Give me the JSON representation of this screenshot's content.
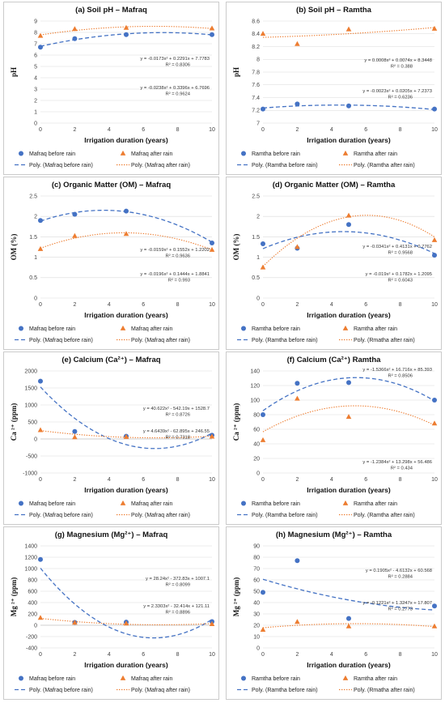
{
  "colors": {
    "before": "#4472C4",
    "after": "#ED7D31",
    "grid": "#d9d9d9",
    "frame": "#bfbfbf"
  },
  "legend_labels": {
    "mafraq_before": "Mafraq before rain",
    "mafraq_after": "Mafraq after rain",
    "mafraq_poly_before": "Poly. (Mafraq before rain)",
    "mafraq_poly_after": "Poly. (Mafraq after rain)",
    "ramtha_before": "Ramtha before rain",
    "ramtha_after": "Ramtha after rain",
    "ramtha_poly_before": "Poly. (Ramtha before rain)",
    "ramtha_poly_after": "Poly. (Rmatha after rain)"
  },
  "chart_data": [
    {
      "id": "a",
      "type": "scatter",
      "title": "(a) Soil pH – Mafraq",
      "xlabel": "Irrigation duration (years)",
      "ylabel": "pH",
      "xlim": [
        0,
        10
      ],
      "xticks": [
        0,
        2,
        4,
        6,
        8,
        10
      ],
      "ylim": [
        0,
        9
      ],
      "yticks": [
        0,
        1,
        2,
        3,
        4,
        5,
        6,
        7,
        8,
        9
      ],
      "grid": true,
      "legend_position": "bottom",
      "series": [
        {
          "name": "Mafraq before rain",
          "marker": "circle",
          "x": [
            0,
            2,
            5,
            10
          ],
          "y": [
            6.7,
            7.45,
            7.8,
            7.8
          ],
          "trend": [
            -0.0238,
            0.3396,
            6.7696
          ],
          "trend_name": "Poly. (Mafraq before rain)",
          "equation": "y = -0.0238x² + 0.3396x + 6.7696",
          "r2": "R² = 0.9624"
        },
        {
          "name": "Mafraq after rain",
          "marker": "triangle",
          "x": [
            0,
            2,
            5,
            10
          ],
          "y": [
            7.7,
            8.3,
            8.4,
            8.35
          ],
          "trend": [
            -0.0173,
            0.2291,
            7.7783
          ],
          "trend_name": "Poly. (Mafraq after rain)",
          "equation": "y = -0.0173x² + 0.2291x + 7.7783",
          "r2": "R² = 0.8306"
        }
      ]
    },
    {
      "id": "b",
      "type": "scatter",
      "title": "(b) Soil pH – Ramtha",
      "xlabel": "Irrigation duration (years)",
      "ylabel": "pH",
      "xlim": [
        0,
        10
      ],
      "xticks": [
        0,
        2,
        4,
        6,
        8,
        10
      ],
      "ylim": [
        7,
        8.6
      ],
      "yticks": [
        7,
        7.2,
        7.4,
        7.6,
        7.8,
        8,
        8.2,
        8.4,
        8.6
      ],
      "grid": true,
      "legend_position": "bottom",
      "series": [
        {
          "name": "Ramtha before rain",
          "marker": "circle",
          "x": [
            0,
            2,
            5,
            10
          ],
          "y": [
            7.22,
            7.3,
            7.27,
            7.22
          ],
          "trend": [
            -0.0023,
            0.0205,
            7.2373
          ],
          "trend_name": "Poly. (Ramtha before rain)",
          "equation": "y = -0.0023x² + 0.0205x + 7.2373",
          "r2": "R² = 0.6236"
        },
        {
          "name": "Ramtha after rain",
          "marker": "triangle",
          "x": [
            0,
            2,
            5,
            10
          ],
          "y": [
            8.4,
            8.24,
            8.47,
            8.48
          ],
          "trend": [
            0.0008,
            0.0074,
            8.3448
          ],
          "trend_name": "Poly. (Ramtha after rain)",
          "equation": "y = 0.0008x² + 0.0074x + 8.3448",
          "r2": "R² = 0.388"
        }
      ]
    },
    {
      "id": "c",
      "type": "scatter",
      "title": "(c) Organic Matter (OM) – Mafraq",
      "xlabel": "Irrigation duration (years)",
      "ylabel": "OM (%)",
      "xlim": [
        0,
        10
      ],
      "xticks": [
        0,
        2,
        4,
        6,
        8,
        10
      ],
      "ylim": [
        0,
        2.5
      ],
      "yticks": [
        0,
        0.5,
        1,
        1.5,
        2,
        2.5
      ],
      "grid": true,
      "legend_position": "bottom",
      "series": [
        {
          "name": "Mafraq before rain",
          "marker": "circle",
          "x": [
            0,
            2,
            5,
            10
          ],
          "y": [
            1.9,
            2.05,
            2.13,
            1.35
          ],
          "trend": [
            -0.0196,
            0.1444,
            1.8841
          ],
          "trend_name": "Poly. (Mafraq before rain)",
          "equation": "y = -0.0196x² + 0.1444x + 1.8841",
          "r2": "R² = 0.993"
        },
        {
          "name": "Mafraq after rain",
          "marker": "triangle",
          "x": [
            0,
            2,
            5,
            10
          ],
          "y": [
            1.2,
            1.52,
            1.57,
            1.18
          ],
          "trend": [
            -0.0159,
            0.1552,
            1.2202
          ],
          "trend_name": "Poly. (Mafraq after rain)",
          "equation": "y = -0.0159x² + 0.1552x + 1.2202",
          "r2": "R² = 0.9636"
        }
      ]
    },
    {
      "id": "d",
      "type": "scatter",
      "title": "(d) Organic Matter (OM) – Ramtha",
      "xlabel": "Irrigation duration (years)",
      "ylabel": "OM (%)",
      "xlim": [
        0,
        10
      ],
      "xticks": [
        0,
        2,
        4,
        6,
        8,
        10
      ],
      "ylim": [
        0,
        2.5
      ],
      "yticks": [
        0,
        0.5,
        1,
        1.5,
        2,
        2.5
      ],
      "grid": true,
      "legend_position": "bottom",
      "series": [
        {
          "name": "Ramtha before rain",
          "marker": "circle",
          "x": [
            0,
            2,
            5,
            10
          ],
          "y": [
            1.33,
            1.22,
            1.8,
            1.05
          ],
          "trend": [
            -0.019,
            0.1782,
            1.2095
          ],
          "trend_name": "Poly. (Ramtha before rain)",
          "equation": "y = -0.019x² + 0.1782x + 1.2095",
          "r2": "R² = 0.6043"
        },
        {
          "name": "Ramtha after rain",
          "marker": "triangle",
          "x": [
            0,
            2,
            5,
            10
          ],
          "y": [
            0.75,
            1.25,
            2.02,
            1.42
          ],
          "trend": [
            -0.0341,
            0.4131,
            0.7762
          ],
          "trend_name": "Poly. (Rmatha after rain)",
          "equation": "y = -0.0341x² + 0.4131x + 0.7762",
          "r2": "R² = 0.9568"
        }
      ]
    },
    {
      "id": "e",
      "type": "scatter",
      "title": "(e) Calcium (Ca²⁺) – Mafraq",
      "xlabel": "Irrigation duration (years)",
      "ylabel": "Ca ²⁺ (ppm)",
      "xlim": [
        0,
        10
      ],
      "xticks": [
        0,
        2,
        4,
        6,
        8,
        10
      ],
      "ylim": [
        -1000,
        2000
      ],
      "yticks": [
        -1000,
        -500,
        0,
        500,
        1000,
        1500,
        2000
      ],
      "grid": true,
      "legend_position": "bottom",
      "series": [
        {
          "name": "Mafraq before rain",
          "marker": "circle",
          "x": [
            0,
            2,
            5,
            10
          ],
          "y": [
            1700,
            220,
            80,
            110
          ],
          "trend": [
            40.622,
            -542.19,
            1528.7
          ],
          "trend_name": "Poly. (Mafraq before rain)",
          "equation": "y = 40.622x² - 542.19x + 1528.7",
          "r2": "R² = 0.8726"
        },
        {
          "name": "Mafraq after rain",
          "marker": "triangle",
          "x": [
            0,
            2,
            5,
            10
          ],
          "y": [
            260,
            50,
            60,
            70
          ],
          "trend": [
            4.6439,
            -62.895,
            246.55
          ],
          "trend_name": "Poly. (Mafraq after rain)",
          "equation": "y = 4.6439x² - 62.895x + 246.55",
          "r2": "R² = 0.7318"
        }
      ]
    },
    {
      "id": "f",
      "type": "scatter",
      "title": "(f) Calcium (Ca²⁺) Ramtha",
      "xlabel": "Irrigation duration (years)",
      "ylabel": "Ca ²⁺ (ppm)",
      "xlim": [
        0,
        10
      ],
      "xticks": [
        0,
        2,
        4,
        6,
        8,
        10
      ],
      "ylim": [
        0,
        140
      ],
      "yticks": [
        0,
        20,
        40,
        60,
        80,
        100,
        120,
        140
      ],
      "grid": true,
      "legend_position": "bottom",
      "series": [
        {
          "name": "Ramtha before rain",
          "marker": "circle",
          "x": [
            0,
            2,
            5,
            10
          ],
          "y": [
            80,
            123,
            124,
            100
          ],
          "trend": [
            -1.5366,
            16.716,
            85.393
          ],
          "trend_name": "Poly. (Ramtha before rain)",
          "equation": "y = -1.5366x² + 16.716x + 85.393",
          "r2": "R² = 0.8506"
        },
        {
          "name": "Ramtha after rain",
          "marker": "triangle",
          "x": [
            0,
            2,
            5,
            10
          ],
          "y": [
            45,
            102,
            77,
            68
          ],
          "trend": [
            -1.2384,
            13.298,
            56.486
          ],
          "trend_name": "Poly. (Ramtha after rain)",
          "equation": "y = -1.2384x² + 13.298x + 56.486",
          "r2": "R² = 0.434"
        }
      ]
    },
    {
      "id": "g",
      "type": "scatter",
      "title": "(g) Magnesium (Mg²⁺) – Mafraq",
      "xlabel": "Irrigation duration (years)",
      "ylabel": "Mg ²⁺ (ppm)",
      "xlim": [
        0,
        10
      ],
      "xticks": [
        0,
        2,
        4,
        6,
        8,
        10
      ],
      "ylim": [
        -400,
        1400
      ],
      "yticks": [
        -400,
        -200,
        0,
        200,
        400,
        600,
        800,
        1000,
        1200,
        1400
      ],
      "grid": true,
      "legend_position": "bottom",
      "series": [
        {
          "name": "Mafraq before rain",
          "marker": "circle",
          "x": [
            0,
            2,
            5,
            10
          ],
          "y": [
            1160,
            50,
            55,
            65
          ],
          "trend": [
            28.24,
            -372.83,
            1007.1
          ],
          "trend_name": "Poly. (Mafraq before rain)",
          "equation": "y = 28.24x² - 372.83x + 1007.1",
          "r2": "R² = 0.8099"
        },
        {
          "name": "Mafraq after rain",
          "marker": "triangle",
          "x": [
            0,
            2,
            5,
            10
          ],
          "y": [
            130,
            45,
            30,
            20
          ],
          "trend": [
            2.3303,
            -32.414,
            121.11
          ],
          "trend_name": "Poly. (Mafraq after rain)",
          "equation": "y = 2.3303x² - 32.414x + 121.11",
          "r2": "R² = 0.8896"
        }
      ]
    },
    {
      "id": "h",
      "type": "scatter",
      "title": "(h) Magnesium (Mg²⁺) – Ramtha",
      "xlabel": "Irrigation duration (years)",
      "ylabel": "Mg ²⁺ (ppm)",
      "xlim": [
        0,
        10
      ],
      "xticks": [
        0,
        2,
        4,
        6,
        8,
        10
      ],
      "ylim": [
        0,
        90
      ],
      "yticks": [
        0,
        10,
        20,
        30,
        40,
        50,
        60,
        70,
        80,
        90
      ],
      "grid": true,
      "legend_position": "bottom",
      "series": [
        {
          "name": "Ramtha before rain",
          "marker": "circle",
          "x": [
            0,
            2,
            5,
            10
          ],
          "y": [
            49,
            77,
            26,
            37
          ],
          "trend": [
            0.1905,
            -4.6132,
            60.568
          ],
          "trend_name": "Poly. (Ramtha before rain)",
          "equation": "y = 0.1905x² - 4.6132x + 60.568",
          "r2": "R² = 0.2884"
        },
        {
          "name": "Ramtha after rain",
          "marker": "triangle",
          "x": [
            0,
            2,
            5,
            10
          ],
          "y": [
            16,
            23,
            19,
            19
          ],
          "trend": [
            -0.1221,
            1.3247,
            17.807
          ],
          "trend_name": "Poly. (Rmatha after rain)",
          "equation": "y = -0.1221x² + 1.3247x + 17.807",
          "r2": "R² = 0.2773"
        }
      ]
    }
  ]
}
